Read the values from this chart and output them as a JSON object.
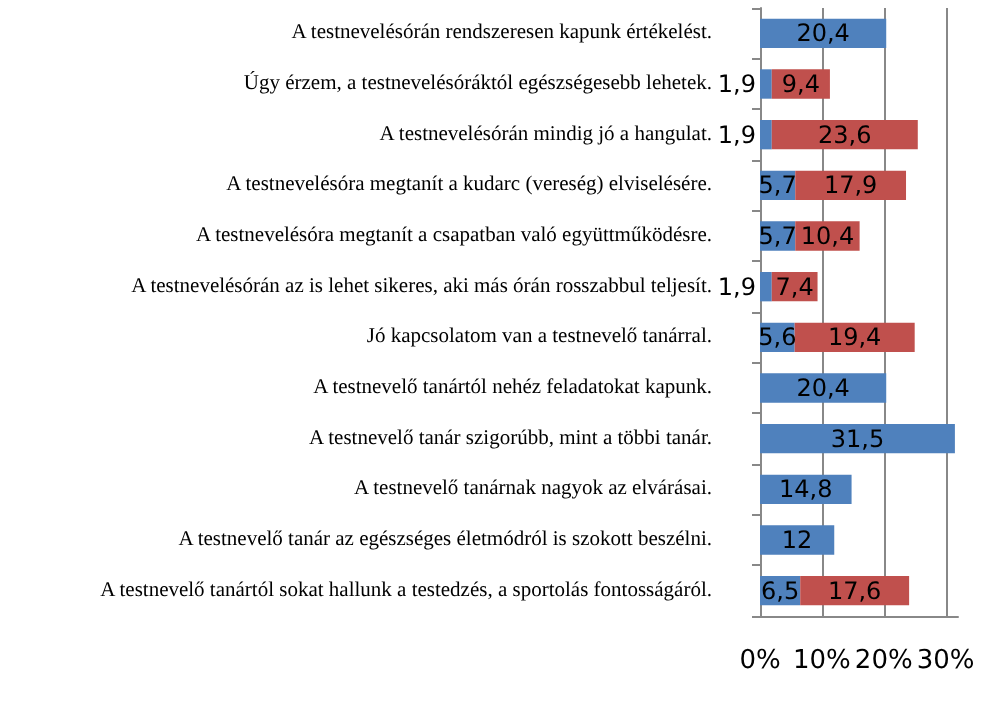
{
  "chart_data": {
    "type": "bar",
    "orientation": "horizontal",
    "stacked": true,
    "categories": [
      "A testnevelésórán rendszeresen kapunk értékelést.",
      "Úgy érzem, a testnevelésóráktól egészségesebb lehetek.",
      "A testnevelésórán mindig jó a hangulat.",
      "A testnevelésóra megtanít a kudarc (vereség) elviselésére.",
      "A testnevelésóra megtanít a csapatban való együttműködésre.",
      "A testnevelésórán az is lehet sikeres, aki más órán rosszabbul teljesít.",
      "Jó kapcsolatom van a testnevelő tanárral.",
      "A testnevelő tanártól nehéz feladatokat kapunk.",
      "A testnevelő tanár szigorúbb, mint a többi tanár.",
      "A testnevelő tanárnak nagyok az elvárásai.",
      "A testnevelő tanár az egészséges életmódról is szokott beszélni.",
      "A testnevelő tanártól sokat hallunk a testedzés, a sportolás fontosságáról."
    ],
    "series": [
      {
        "color": "#4f81bd",
        "values": [
          20.4,
          1.9,
          1.9,
          5.7,
          5.7,
          1.9,
          5.6,
          20.4,
          31.5,
          14.8,
          12,
          6.5
        ],
        "value_labels": [
          "20,4",
          "1,9",
          "1,9",
          "5,7",
          "5,7",
          "1,9",
          "5,6",
          "20,4",
          "31,5",
          "14,8",
          "12",
          "6,5"
        ]
      },
      {
        "color": "#c0504d",
        "values": [
          null,
          9.4,
          23.6,
          17.9,
          10.4,
          7.4,
          19.4,
          null,
          null,
          null,
          null,
          17.6
        ],
        "value_labels": [
          null,
          "9,4",
          "23,6",
          "17,9",
          "10,4",
          "7,4",
          "19,4",
          null,
          null,
          null,
          null,
          "17,6"
        ]
      }
    ],
    "xlim": [
      0,
      32
    ],
    "xticks": [
      {
        "value": 0,
        "label": "0%"
      },
      {
        "value": 10,
        "label": "10%"
      },
      {
        "value": 20,
        "label": "20%"
      },
      {
        "value": 30,
        "label": "30%"
      }
    ],
    "grid": "x"
  }
}
